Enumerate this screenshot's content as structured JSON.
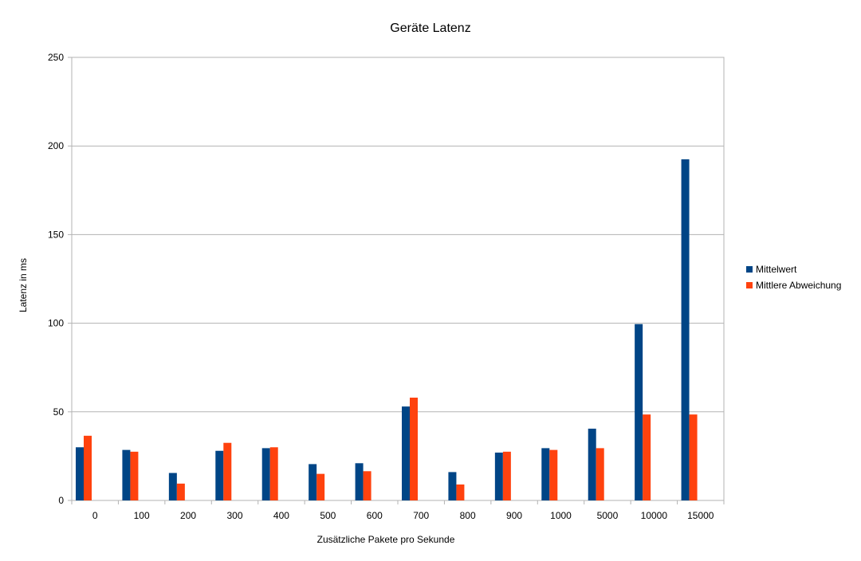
{
  "chart_data": {
    "type": "bar",
    "title": "Geräte Latenz",
    "xlabel": "Zusätzliche Pakete pro Sekunde",
    "ylabel": "Latenz in ms",
    "ylim": [
      0,
      250
    ],
    "yticks": [
      0,
      50,
      100,
      150,
      200,
      250
    ],
    "grid": true,
    "legend_position": "right",
    "categories": [
      "0",
      "100",
      "200",
      "300",
      "400",
      "500",
      "600",
      "700",
      "800",
      "900",
      "1000",
      "5000",
      "10000",
      "15000"
    ],
    "series": [
      {
        "name": "Mittelwert",
        "color": "#004586",
        "values": [
          30,
          28.5,
          15.5,
          28,
          29.5,
          20.5,
          21,
          53,
          16,
          27,
          29.5,
          40.5,
          99.5,
          192.5
        ]
      },
      {
        "name": "Mittlere Abweichung",
        "color": "#ff420e",
        "values": [
          36.5,
          27.5,
          9.5,
          32.5,
          30,
          15,
          16.5,
          58,
          9,
          27.5,
          28.5,
          29.5,
          48.5,
          48.5
        ]
      }
    ]
  }
}
